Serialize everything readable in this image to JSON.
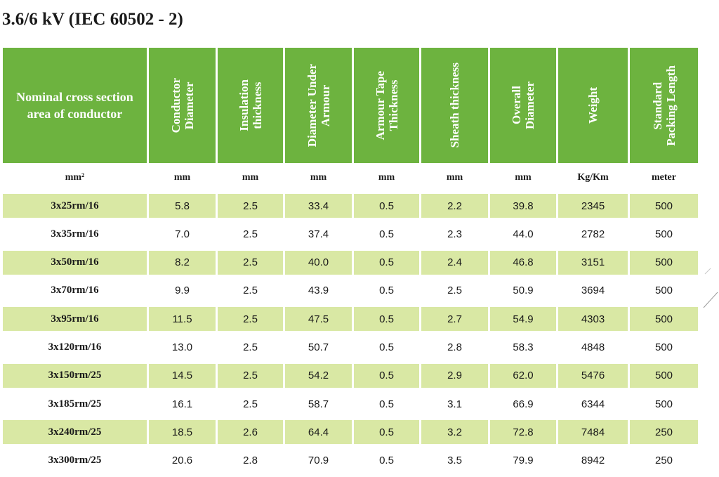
{
  "title": "3.6/6 kV (IEC 60502 - 2)",
  "colors": {
    "header_bg": "#6db33f",
    "row_shade": "#d9e8a4",
    "text": "#1a1a1a"
  },
  "columns": [
    {
      "label": "Nominal cross section\narea of conductor",
      "unit": "mm²"
    },
    {
      "label": "Conductor\nDiameter",
      "unit": "mm"
    },
    {
      "label": "Insulation\nthickness",
      "unit": "mm"
    },
    {
      "label": "Diameter Under\nArmour",
      "unit": "mm"
    },
    {
      "label": "Armour Tape\nThickness",
      "unit": "mm"
    },
    {
      "label": "Sheath thickness",
      "unit": "mm"
    },
    {
      "label": "Overall\nDiameter",
      "unit": "mm"
    },
    {
      "label": "Weight",
      "unit": "Kg/Km"
    },
    {
      "label": "Standard\nPacking Length",
      "unit": "meter"
    }
  ],
  "rows": [
    [
      "3x25rm/16",
      "5.8",
      "2.5",
      "33.4",
      "0.5",
      "2.2",
      "39.8",
      "2345",
      "500"
    ],
    [
      "3x35rm/16",
      "7.0",
      "2.5",
      "37.4",
      "0.5",
      "2.3",
      "44.0",
      "2782",
      "500"
    ],
    [
      "3x50rm/16",
      "8.2",
      "2.5",
      "40.0",
      "0.5",
      "2.4",
      "46.8",
      "3151",
      "500"
    ],
    [
      "3x70rm/16",
      "9.9",
      "2.5",
      "43.9",
      "0.5",
      "2.5",
      "50.9",
      "3694",
      "500"
    ],
    [
      "3x95rm/16",
      "11.5",
      "2.5",
      "47.5",
      "0.5",
      "2.7",
      "54.9",
      "4303",
      "500"
    ],
    [
      "3x120rm/16",
      "13.0",
      "2.5",
      "50.7",
      "0.5",
      "2.8",
      "58.3",
      "4848",
      "500"
    ],
    [
      "3x150rm/25",
      "14.5",
      "2.5",
      "54.2",
      "0.5",
      "2.9",
      "62.0",
      "5476",
      "500"
    ],
    [
      "3x185rm/25",
      "16.1",
      "2.5",
      "58.7",
      "0.5",
      "3.1",
      "66.9",
      "6344",
      "500"
    ],
    [
      "3x240rm/25",
      "18.5",
      "2.6",
      "64.4",
      "0.5",
      "3.2",
      "72.8",
      "7484",
      "250"
    ],
    [
      "3x300rm/25",
      "20.6",
      "2.8",
      "70.9",
      "0.5",
      "3.5",
      "79.9",
      "8942",
      "250"
    ]
  ]
}
